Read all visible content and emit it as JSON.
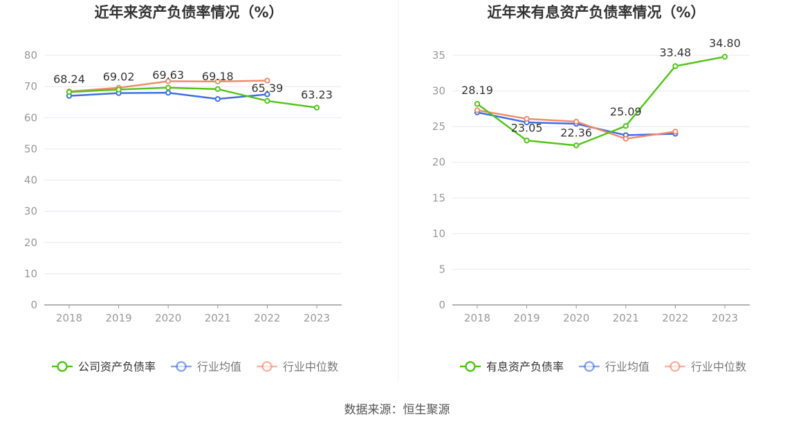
{
  "colors": {
    "company": "#52c41a",
    "industry_avg": "#3b6fe0",
    "industry_median": "#f08a6c",
    "grid": "#e6e8ef",
    "axis": "#999999",
    "tick_text": "#999999",
    "title_text": "#333333",
    "label_text": "#333333",
    "divider": "#eeeeee"
  },
  "source_text": "数据来源：恒生聚源",
  "chart_data": [
    {
      "type": "line",
      "title": "近年来资产负债率情况（%）",
      "categories": [
        "2018",
        "2019",
        "2020",
        "2021",
        "2022",
        "2023"
      ],
      "ylim": [
        0,
        80
      ],
      "yticks": [
        0,
        10,
        20,
        30,
        40,
        50,
        60,
        70,
        80
      ],
      "grid": true,
      "legend_position": "bottom",
      "series": [
        {
          "name": "公司资产负债率",
          "role": "company",
          "values": [
            68.24,
            69.02,
            69.63,
            69.18,
            65.39,
            63.23
          ],
          "labels": [
            "68.24",
            "69.02",
            "69.63",
            "69.18",
            "65.39",
            "63.23"
          ]
        },
        {
          "name": "行业均值",
          "role": "industry_avg",
          "values": [
            67.0,
            67.9,
            68.0,
            66.0,
            67.5,
            null
          ]
        },
        {
          "name": "行业中位数",
          "role": "industry_median",
          "values": [
            68.4,
            69.6,
            71.7,
            71.6,
            71.9,
            null
          ]
        }
      ]
    },
    {
      "type": "line",
      "title": "近年来有息资产负债率情况（%）",
      "categories": [
        "2018",
        "2019",
        "2020",
        "2021",
        "2022",
        "2023"
      ],
      "ylim": [
        0,
        35
      ],
      "yticks": [
        0,
        5,
        10,
        15,
        20,
        25,
        30,
        35
      ],
      "grid": true,
      "legend_position": "bottom",
      "series": [
        {
          "name": "有息资产负债率",
          "role": "company",
          "values": [
            28.19,
            23.05,
            22.36,
            25.09,
            33.48,
            34.8
          ],
          "labels": [
            "28.19",
            "23.05",
            "22.36",
            "25.09",
            "33.48",
            "34.80"
          ]
        },
        {
          "name": "行业均值",
          "role": "industry_avg",
          "values": [
            27.0,
            25.6,
            25.4,
            23.8,
            24.0,
            null
          ]
        },
        {
          "name": "行业中位数",
          "role": "industry_median",
          "values": [
            27.3,
            26.1,
            25.7,
            23.3,
            24.3,
            null
          ]
        }
      ]
    }
  ]
}
